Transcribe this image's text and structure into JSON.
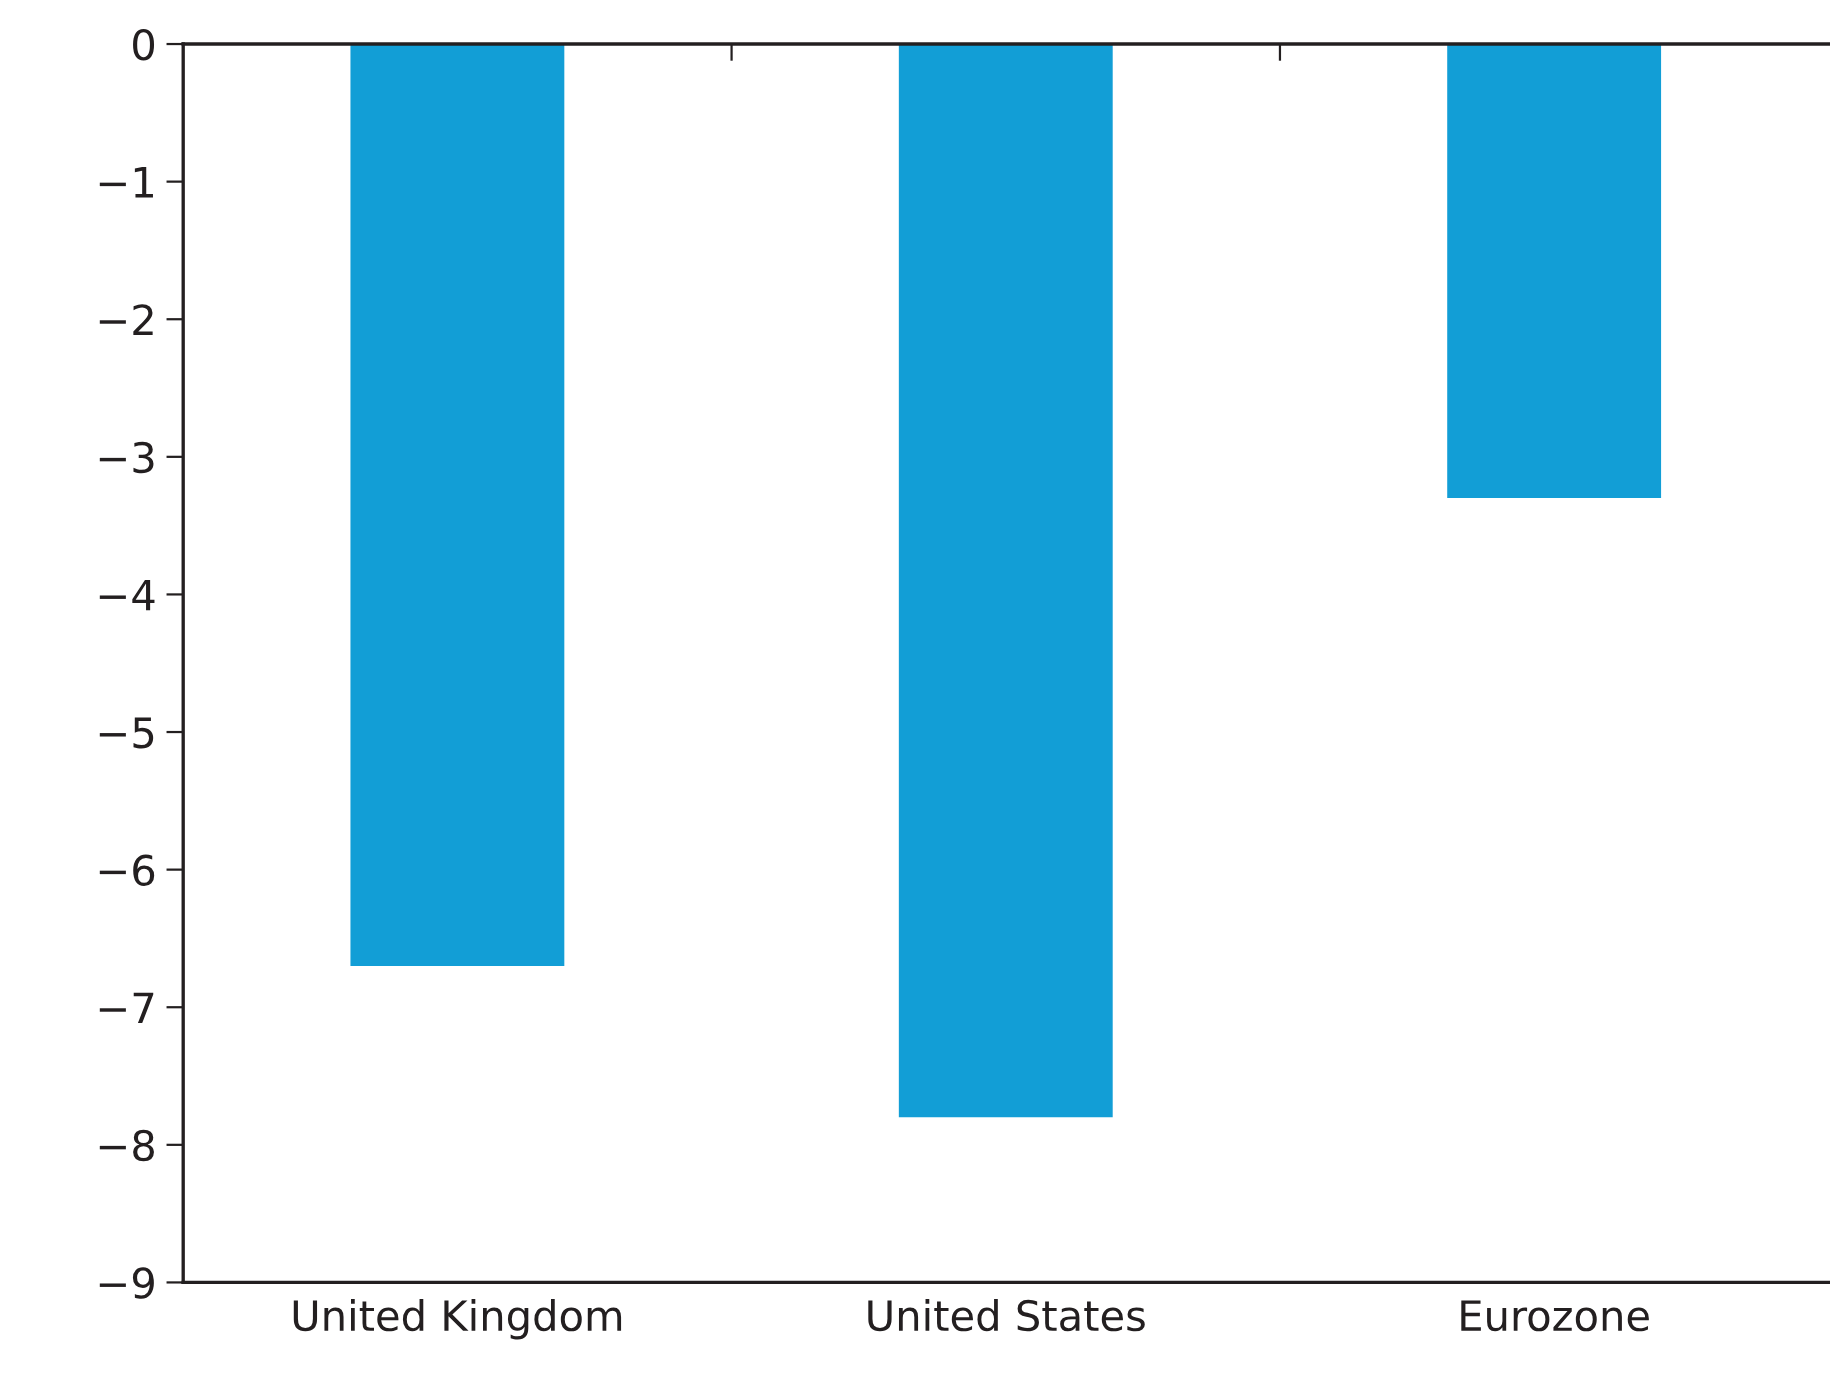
{
  "chart_data": {
    "type": "bar",
    "categories": [
      "United Kingdom",
      "United States",
      "Eurozone"
    ],
    "values": [
      -6.7,
      -7.8,
      -3.3
    ],
    "color": "#129ed6",
    "ylim": [
      -9,
      0
    ],
    "yticks": [
      0,
      -1,
      -2,
      -3,
      -4,
      -5,
      -6,
      -7,
      -8,
      -9
    ],
    "grid": false
  }
}
